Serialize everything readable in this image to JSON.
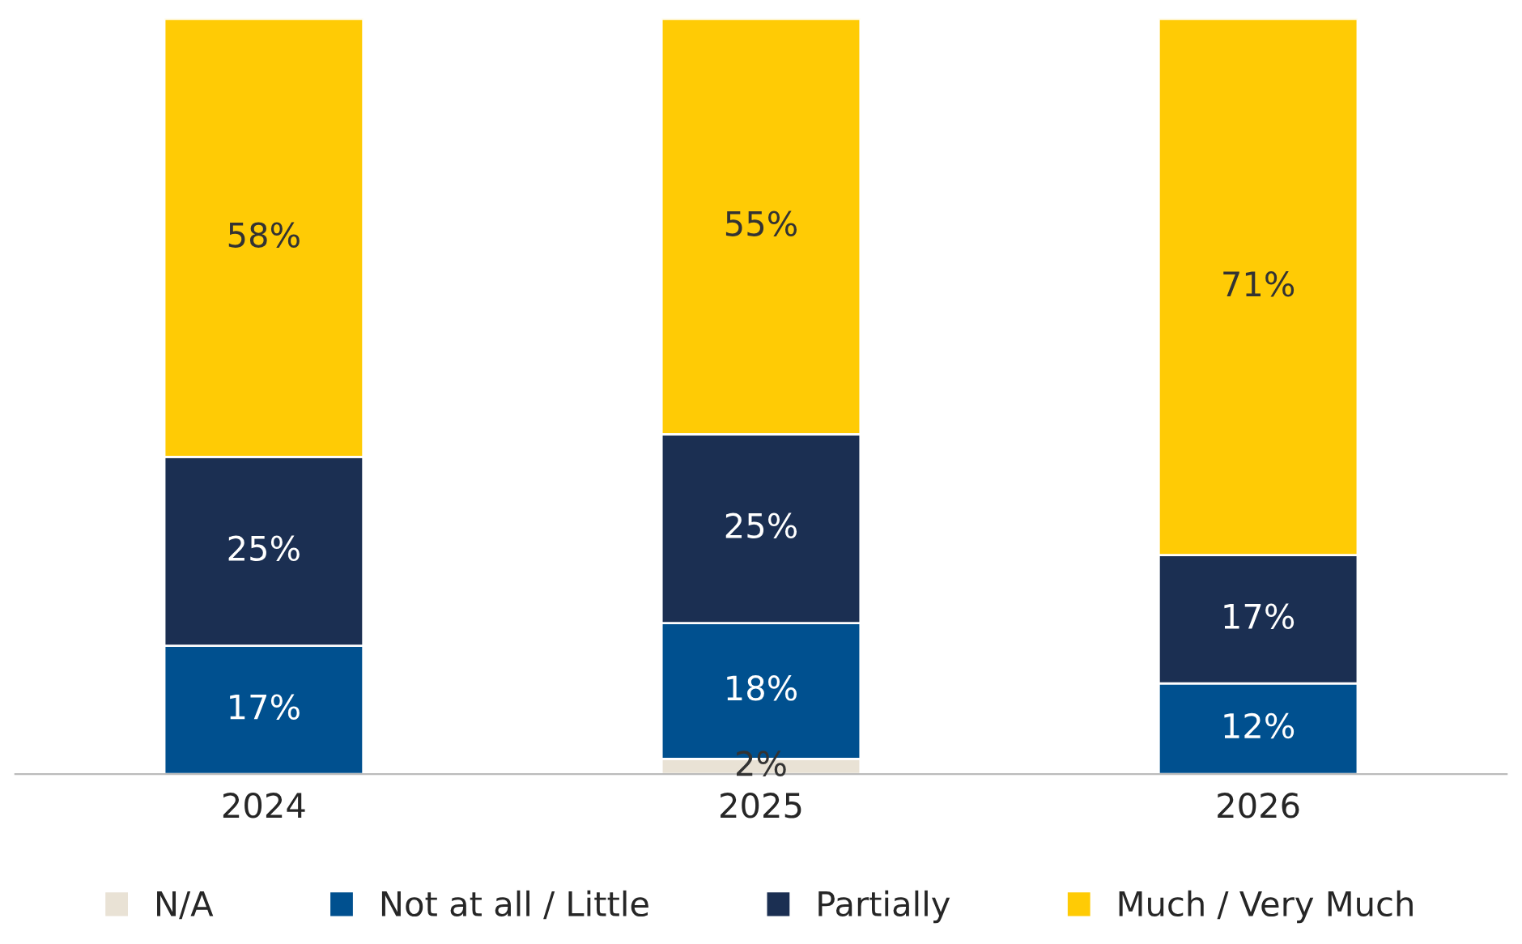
{
  "chart_data": {
    "type": "bar",
    "stacked": true,
    "categories": [
      "2024",
      "2025",
      "2026"
    ],
    "series": [
      {
        "name": "N/A",
        "color": "#e9e2d5",
        "values": [
          0,
          2,
          0
        ],
        "value_labels": [
          null,
          "2%",
          null
        ]
      },
      {
        "name": "Not at all / Little",
        "color": "#00508f",
        "values": [
          17,
          18,
          12
        ],
        "value_labels": [
          "17%",
          "18%",
          "12%"
        ]
      },
      {
        "name": "Partially",
        "color": "#1b2f52",
        "values": [
          25,
          25,
          17
        ],
        "value_labels": [
          "25%",
          "25%",
          "17%"
        ]
      },
      {
        "name": "Much / Very Much",
        "color": "#ffcb05",
        "values": [
          58,
          55,
          71
        ],
        "value_labels": [
          "58%",
          "55%",
          "71%"
        ]
      }
    ],
    "legend": "bottom"
  }
}
